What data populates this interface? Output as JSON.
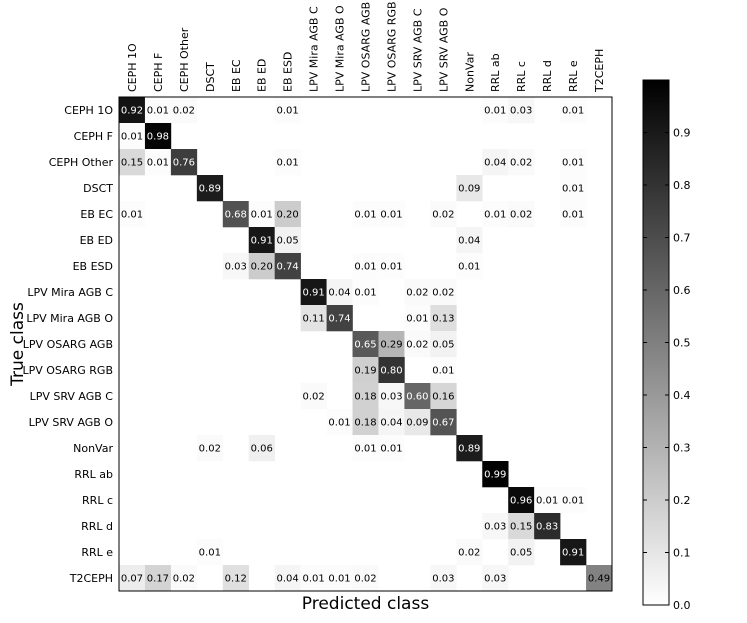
{
  "chart_data": {
    "type": "heatmap",
    "title": "",
    "xlabel": "Predicted class",
    "ylabel": "True class",
    "x_categories": [
      "CEPH 1O",
      "CEPH F",
      "CEPH Other",
      "DSCT",
      "EB EC",
      "EB ED",
      "EB ESD",
      "LPV Mira AGB C",
      "LPV Mira AGB O",
      "LPV OSARG AGB",
      "LPV OSARG RGB",
      "LPV SRV AGB C",
      "LPV SRV AGB O",
      "NonVar",
      "RRL ab",
      "RRL c",
      "RRL d",
      "RRL e",
      "T2CEPH"
    ],
    "y_categories": [
      "CEPH 1O",
      "CEPH F",
      "CEPH Other",
      "DSCT",
      "EB EC",
      "EB ED",
      "EB ESD",
      "LPV Mira AGB C",
      "LPV Mira AGB O",
      "LPV OSARG AGB",
      "LPV OSARG RGB",
      "LPV SRV AGB C",
      "LPV SRV AGB O",
      "NonVar",
      "RRL ab",
      "RRL c",
      "RRL d",
      "RRL e",
      "T2CEPH"
    ],
    "colormap": "grayscale (white=0, black=max)",
    "colorbar_range": [
      0.0,
      1.0
    ],
    "colorbar_ticks": [
      "0.0",
      "0.1",
      "0.2",
      "0.3",
      "0.4",
      "0.5",
      "0.6",
      "0.7",
      "0.8",
      "0.9"
    ],
    "cells": [
      {
        "row": 0,
        "col": 0,
        "value": 0.92,
        "label": "0.92"
      },
      {
        "row": 0,
        "col": 1,
        "value": 0.01,
        "label": "0.01"
      },
      {
        "row": 0,
        "col": 2,
        "value": 0.02,
        "label": "0.02"
      },
      {
        "row": 0,
        "col": 6,
        "value": 0.01,
        "label": "0.01"
      },
      {
        "row": 0,
        "col": 14,
        "value": 0.01,
        "label": "0.01"
      },
      {
        "row": 0,
        "col": 15,
        "value": 0.03,
        "label": "0.03"
      },
      {
        "row": 0,
        "col": 17,
        "value": 0.01,
        "label": "0.01"
      },
      {
        "row": 1,
        "col": 0,
        "value": 0.01,
        "label": "0.01"
      },
      {
        "row": 1,
        "col": 1,
        "value": 0.98,
        "label": "0.98"
      },
      {
        "row": 2,
        "col": 0,
        "value": 0.15,
        "label": "0.15"
      },
      {
        "row": 2,
        "col": 1,
        "value": 0.01,
        "label": "0.01"
      },
      {
        "row": 2,
        "col": 2,
        "value": 0.76,
        "label": "0.76"
      },
      {
        "row": 2,
        "col": 6,
        "value": 0.01,
        "label": "0.01"
      },
      {
        "row": 2,
        "col": 14,
        "value": 0.04,
        "label": "0.04"
      },
      {
        "row": 2,
        "col": 15,
        "value": 0.02,
        "label": "0.02"
      },
      {
        "row": 2,
        "col": 17,
        "value": 0.01,
        "label": "0.01"
      },
      {
        "row": 3,
        "col": 3,
        "value": 0.89,
        "label": "0.89"
      },
      {
        "row": 3,
        "col": 13,
        "value": 0.09,
        "label": "0.09"
      },
      {
        "row": 3,
        "col": 17,
        "value": 0.01,
        "label": "0.01"
      },
      {
        "row": 4,
        "col": 0,
        "value": 0.01,
        "label": "0.01"
      },
      {
        "row": 4,
        "col": 4,
        "value": 0.68,
        "label": "0.68"
      },
      {
        "row": 4,
        "col": 5,
        "value": 0.01,
        "label": "0.01"
      },
      {
        "row": 4,
        "col": 6,
        "value": 0.2,
        "label": "0.20"
      },
      {
        "row": 4,
        "col": 9,
        "value": 0.01,
        "label": "0.01"
      },
      {
        "row": 4,
        "col": 10,
        "value": 0.01,
        "label": "0.01"
      },
      {
        "row": 4,
        "col": 12,
        "value": 0.02,
        "label": "0.02"
      },
      {
        "row": 4,
        "col": 14,
        "value": 0.01,
        "label": "0.01"
      },
      {
        "row": 4,
        "col": 15,
        "value": 0.02,
        "label": "0.02"
      },
      {
        "row": 4,
        "col": 17,
        "value": 0.01,
        "label": "0.01"
      },
      {
        "row": 5,
        "col": 5,
        "value": 0.91,
        "label": "0.91"
      },
      {
        "row": 5,
        "col": 6,
        "value": 0.05,
        "label": "0.05"
      },
      {
        "row": 5,
        "col": 13,
        "value": 0.04,
        "label": "0.04"
      },
      {
        "row": 6,
        "col": 4,
        "value": 0.03,
        "label": "0.03"
      },
      {
        "row": 6,
        "col": 5,
        "value": 0.2,
        "label": "0.20"
      },
      {
        "row": 6,
        "col": 6,
        "value": 0.74,
        "label": "0.74"
      },
      {
        "row": 6,
        "col": 9,
        "value": 0.01,
        "label": "0.01"
      },
      {
        "row": 6,
        "col": 10,
        "value": 0.01,
        "label": "0.01"
      },
      {
        "row": 6,
        "col": 13,
        "value": 0.01,
        "label": "0.01"
      },
      {
        "row": 7,
        "col": 7,
        "value": 0.91,
        "label": "0.91"
      },
      {
        "row": 7,
        "col": 8,
        "value": 0.04,
        "label": "0.04"
      },
      {
        "row": 7,
        "col": 9,
        "value": 0.01,
        "label": "0.01"
      },
      {
        "row": 7,
        "col": 11,
        "value": 0.02,
        "label": "0.02"
      },
      {
        "row": 7,
        "col": 12,
        "value": 0.02,
        "label": "0.02"
      },
      {
        "row": 8,
        "col": 7,
        "value": 0.11,
        "label": "0.11"
      },
      {
        "row": 8,
        "col": 8,
        "value": 0.74,
        "label": "0.74"
      },
      {
        "row": 8,
        "col": 11,
        "value": 0.01,
        "label": "0.01"
      },
      {
        "row": 8,
        "col": 12,
        "value": 0.13,
        "label": "0.13"
      },
      {
        "row": 9,
        "col": 9,
        "value": 0.65,
        "label": "0.65"
      },
      {
        "row": 9,
        "col": 10,
        "value": 0.29,
        "label": "0.29"
      },
      {
        "row": 9,
        "col": 11,
        "value": 0.02,
        "label": "0.02"
      },
      {
        "row": 9,
        "col": 12,
        "value": 0.05,
        "label": "0.05"
      },
      {
        "row": 10,
        "col": 9,
        "value": 0.19,
        "label": "0.19"
      },
      {
        "row": 10,
        "col": 10,
        "value": 0.8,
        "label": "0.80"
      },
      {
        "row": 10,
        "col": 12,
        "value": 0.01,
        "label": "0.01"
      },
      {
        "row": 11,
        "col": 7,
        "value": 0.02,
        "label": "0.02"
      },
      {
        "row": 11,
        "col": 9,
        "value": 0.18,
        "label": "0.18"
      },
      {
        "row": 11,
        "col": 10,
        "value": 0.03,
        "label": "0.03"
      },
      {
        "row": 11,
        "col": 11,
        "value": 0.6,
        "label": "0.60"
      },
      {
        "row": 11,
        "col": 12,
        "value": 0.16,
        "label": "0.16"
      },
      {
        "row": 12,
        "col": 8,
        "value": 0.01,
        "label": "0.01"
      },
      {
        "row": 12,
        "col": 9,
        "value": 0.18,
        "label": "0.18"
      },
      {
        "row": 12,
        "col": 10,
        "value": 0.04,
        "label": "0.04"
      },
      {
        "row": 12,
        "col": 11,
        "value": 0.09,
        "label": "0.09"
      },
      {
        "row": 12,
        "col": 12,
        "value": 0.67,
        "label": "0.67"
      },
      {
        "row": 13,
        "col": 3,
        "value": 0.02,
        "label": "0.02"
      },
      {
        "row": 13,
        "col": 5,
        "value": 0.06,
        "label": "0.06"
      },
      {
        "row": 13,
        "col": 9,
        "value": 0.01,
        "label": "0.01"
      },
      {
        "row": 13,
        "col": 10,
        "value": 0.01,
        "label": "0.01"
      },
      {
        "row": 13,
        "col": 13,
        "value": 0.89,
        "label": "0.89"
      },
      {
        "row": 14,
        "col": 14,
        "value": 0.99,
        "label": "0.99"
      },
      {
        "row": 15,
        "col": 15,
        "value": 0.96,
        "label": "0.96"
      },
      {
        "row": 15,
        "col": 16,
        "value": 0.01,
        "label": "0.01"
      },
      {
        "row": 15,
        "col": 17,
        "value": 0.01,
        "label": "0.01"
      },
      {
        "row": 16,
        "col": 14,
        "value": 0.03,
        "label": "0.03"
      },
      {
        "row": 16,
        "col": 15,
        "value": 0.15,
        "label": "0.15"
      },
      {
        "row": 16,
        "col": 16,
        "value": 0.83,
        "label": "0.83"
      },
      {
        "row": 17,
        "col": 3,
        "value": 0.01,
        "label": "0.01"
      },
      {
        "row": 17,
        "col": 13,
        "value": 0.02,
        "label": "0.02"
      },
      {
        "row": 17,
        "col": 15,
        "value": 0.05,
        "label": "0.05"
      },
      {
        "row": 17,
        "col": 17,
        "value": 0.91,
        "label": "0.91"
      },
      {
        "row": 18,
        "col": 0,
        "value": 0.07,
        "label": "0.07"
      },
      {
        "row": 18,
        "col": 1,
        "value": 0.17,
        "label": "0.17"
      },
      {
        "row": 18,
        "col": 2,
        "value": 0.02,
        "label": "0.02"
      },
      {
        "row": 18,
        "col": 4,
        "value": 0.12,
        "label": "0.12"
      },
      {
        "row": 18,
        "col": 6,
        "value": 0.04,
        "label": "0.04"
      },
      {
        "row": 18,
        "col": 7,
        "value": 0.01,
        "label": "0.01"
      },
      {
        "row": 18,
        "col": 8,
        "value": 0.01,
        "label": "0.01"
      },
      {
        "row": 18,
        "col": 9,
        "value": 0.02,
        "label": "0.02"
      },
      {
        "row": 18,
        "col": 12,
        "value": 0.03,
        "label": "0.03"
      },
      {
        "row": 18,
        "col": 14,
        "value": 0.03,
        "label": "0.03"
      },
      {
        "row": 18,
        "col": 18,
        "value": 0.49,
        "label": "0.49"
      }
    ]
  }
}
